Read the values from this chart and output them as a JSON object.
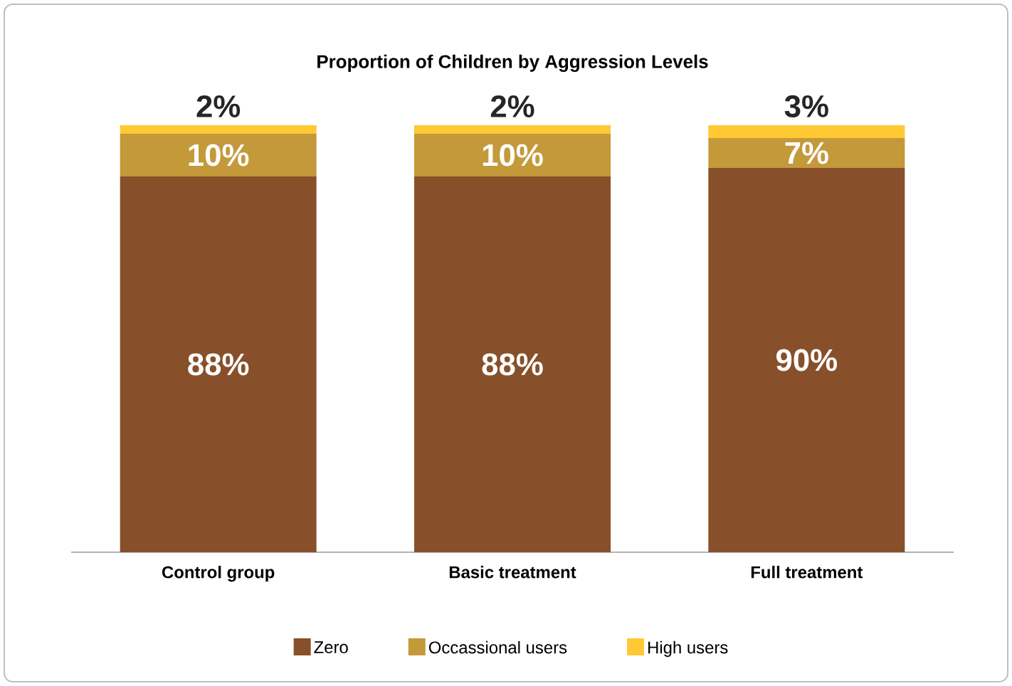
{
  "chart_data": {
    "type": "bar",
    "stacked": true,
    "title": "Proportion of Children by Aggression Levels",
    "categories": [
      "Control group",
      "Basic treatment",
      "Full treatment"
    ],
    "series": [
      {
        "name": "Zero",
        "color": "#87502a",
        "values": [
          88,
          88,
          90
        ],
        "value_labels": [
          "88%",
          "88%",
          "90%"
        ]
      },
      {
        "name": "Occassional users",
        "color": "#c4993a",
        "values": [
          10,
          10,
          7
        ],
        "value_labels": [
          "10%",
          "10%",
          "7%"
        ]
      },
      {
        "name": "High users",
        "color": "#fec933",
        "values": [
          2,
          2,
          3
        ],
        "value_labels": [
          "2%",
          "2%",
          "3%"
        ]
      }
    ],
    "legend": "bottom"
  }
}
